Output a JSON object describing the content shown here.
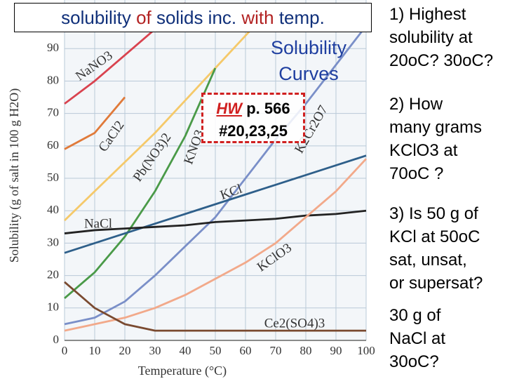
{
  "slide": {
    "title": [
      "solubility ",
      "of",
      " solids inc. ",
      "with",
      " temp."
    ],
    "subtitle": [
      "Solubility",
      "Curves"
    ],
    "homework": {
      "label": "HW",
      "page": " p. 566",
      "problems": "#20,23,25"
    },
    "questions": [
      [
        "1) Highest",
        "solubility at",
        "20oC? 30oC?"
      ],
      [
        "2) How",
        "many grams",
        "KClO3 at",
        "70oC ?"
      ],
      [
        "3) Is 50 g of",
        "KCl at 50oC",
        "sat, unsat,",
        "or supersat?"
      ],
      [
        "30 g of",
        "NaCl at",
        "30oC?"
      ]
    ]
  },
  "chart_data": {
    "type": "line",
    "xlabel": "Temperature (°C)",
    "ylabel": "Solubility (g of salt in 100 g H2O)",
    "x": [
      0,
      10,
      20,
      30,
      40,
      50,
      60,
      70,
      80,
      90,
      100
    ],
    "xlim": [
      0,
      100
    ],
    "xticks": [
      0,
      10,
      20,
      30,
      40,
      50,
      60,
      70,
      80,
      90,
      100
    ],
    "ylim": [
      0,
      105
    ],
    "yticks": [
      0,
      10,
      20,
      30,
      40,
      50,
      60,
      70,
      80,
      90
    ],
    "grid": true,
    "series": [
      {
        "name": "NaNO3",
        "color": "#d9434f",
        "values": [
          73,
          80,
          88,
          96,
          104,
          null,
          null,
          null,
          null,
          null,
          null
        ]
      },
      {
        "name": "CaCl2",
        "color": "#e07a3a",
        "values": [
          59,
          64,
          75,
          null,
          null,
          null,
          null,
          null,
          null,
          null,
          null
        ]
      },
      {
        "name": "Pb(NO3)2",
        "color": "#f5c96a",
        "values": [
          37,
          46,
          55,
          64,
          74,
          84,
          94,
          104,
          null,
          null,
          null
        ]
      },
      {
        "name": "KNO3",
        "color": "#4a9a48",
        "values": [
          13,
          21,
          32,
          46,
          63,
          84,
          null,
          null,
          null,
          null,
          null
        ]
      },
      {
        "name": "K2Cr2O7",
        "color": "#7a8fc8",
        "values": [
          5,
          7,
          12,
          20,
          29,
          38,
          50,
          62,
          73,
          85,
          97
        ]
      },
      {
        "name": "KCl",
        "color": "#2e5f8a",
        "values": [
          27,
          30,
          33,
          36,
          39,
          42,
          45,
          48,
          51,
          54,
          57
        ]
      },
      {
        "name": "NaCl",
        "color": "#222222",
        "values": [
          33,
          34,
          34.5,
          35,
          35.5,
          36.5,
          37,
          37.5,
          38.5,
          39,
          40
        ]
      },
      {
        "name": "KClO3",
        "color": "#f2a98a",
        "values": [
          3,
          5,
          7,
          10,
          14,
          19,
          24,
          30,
          38,
          46,
          56
        ]
      },
      {
        "name": "Ce2(SO4)3",
        "color": "#7a4a30",
        "values": [
          18,
          10,
          5,
          3,
          3,
          3,
          3,
          3,
          3,
          3,
          3
        ]
      }
    ]
  }
}
